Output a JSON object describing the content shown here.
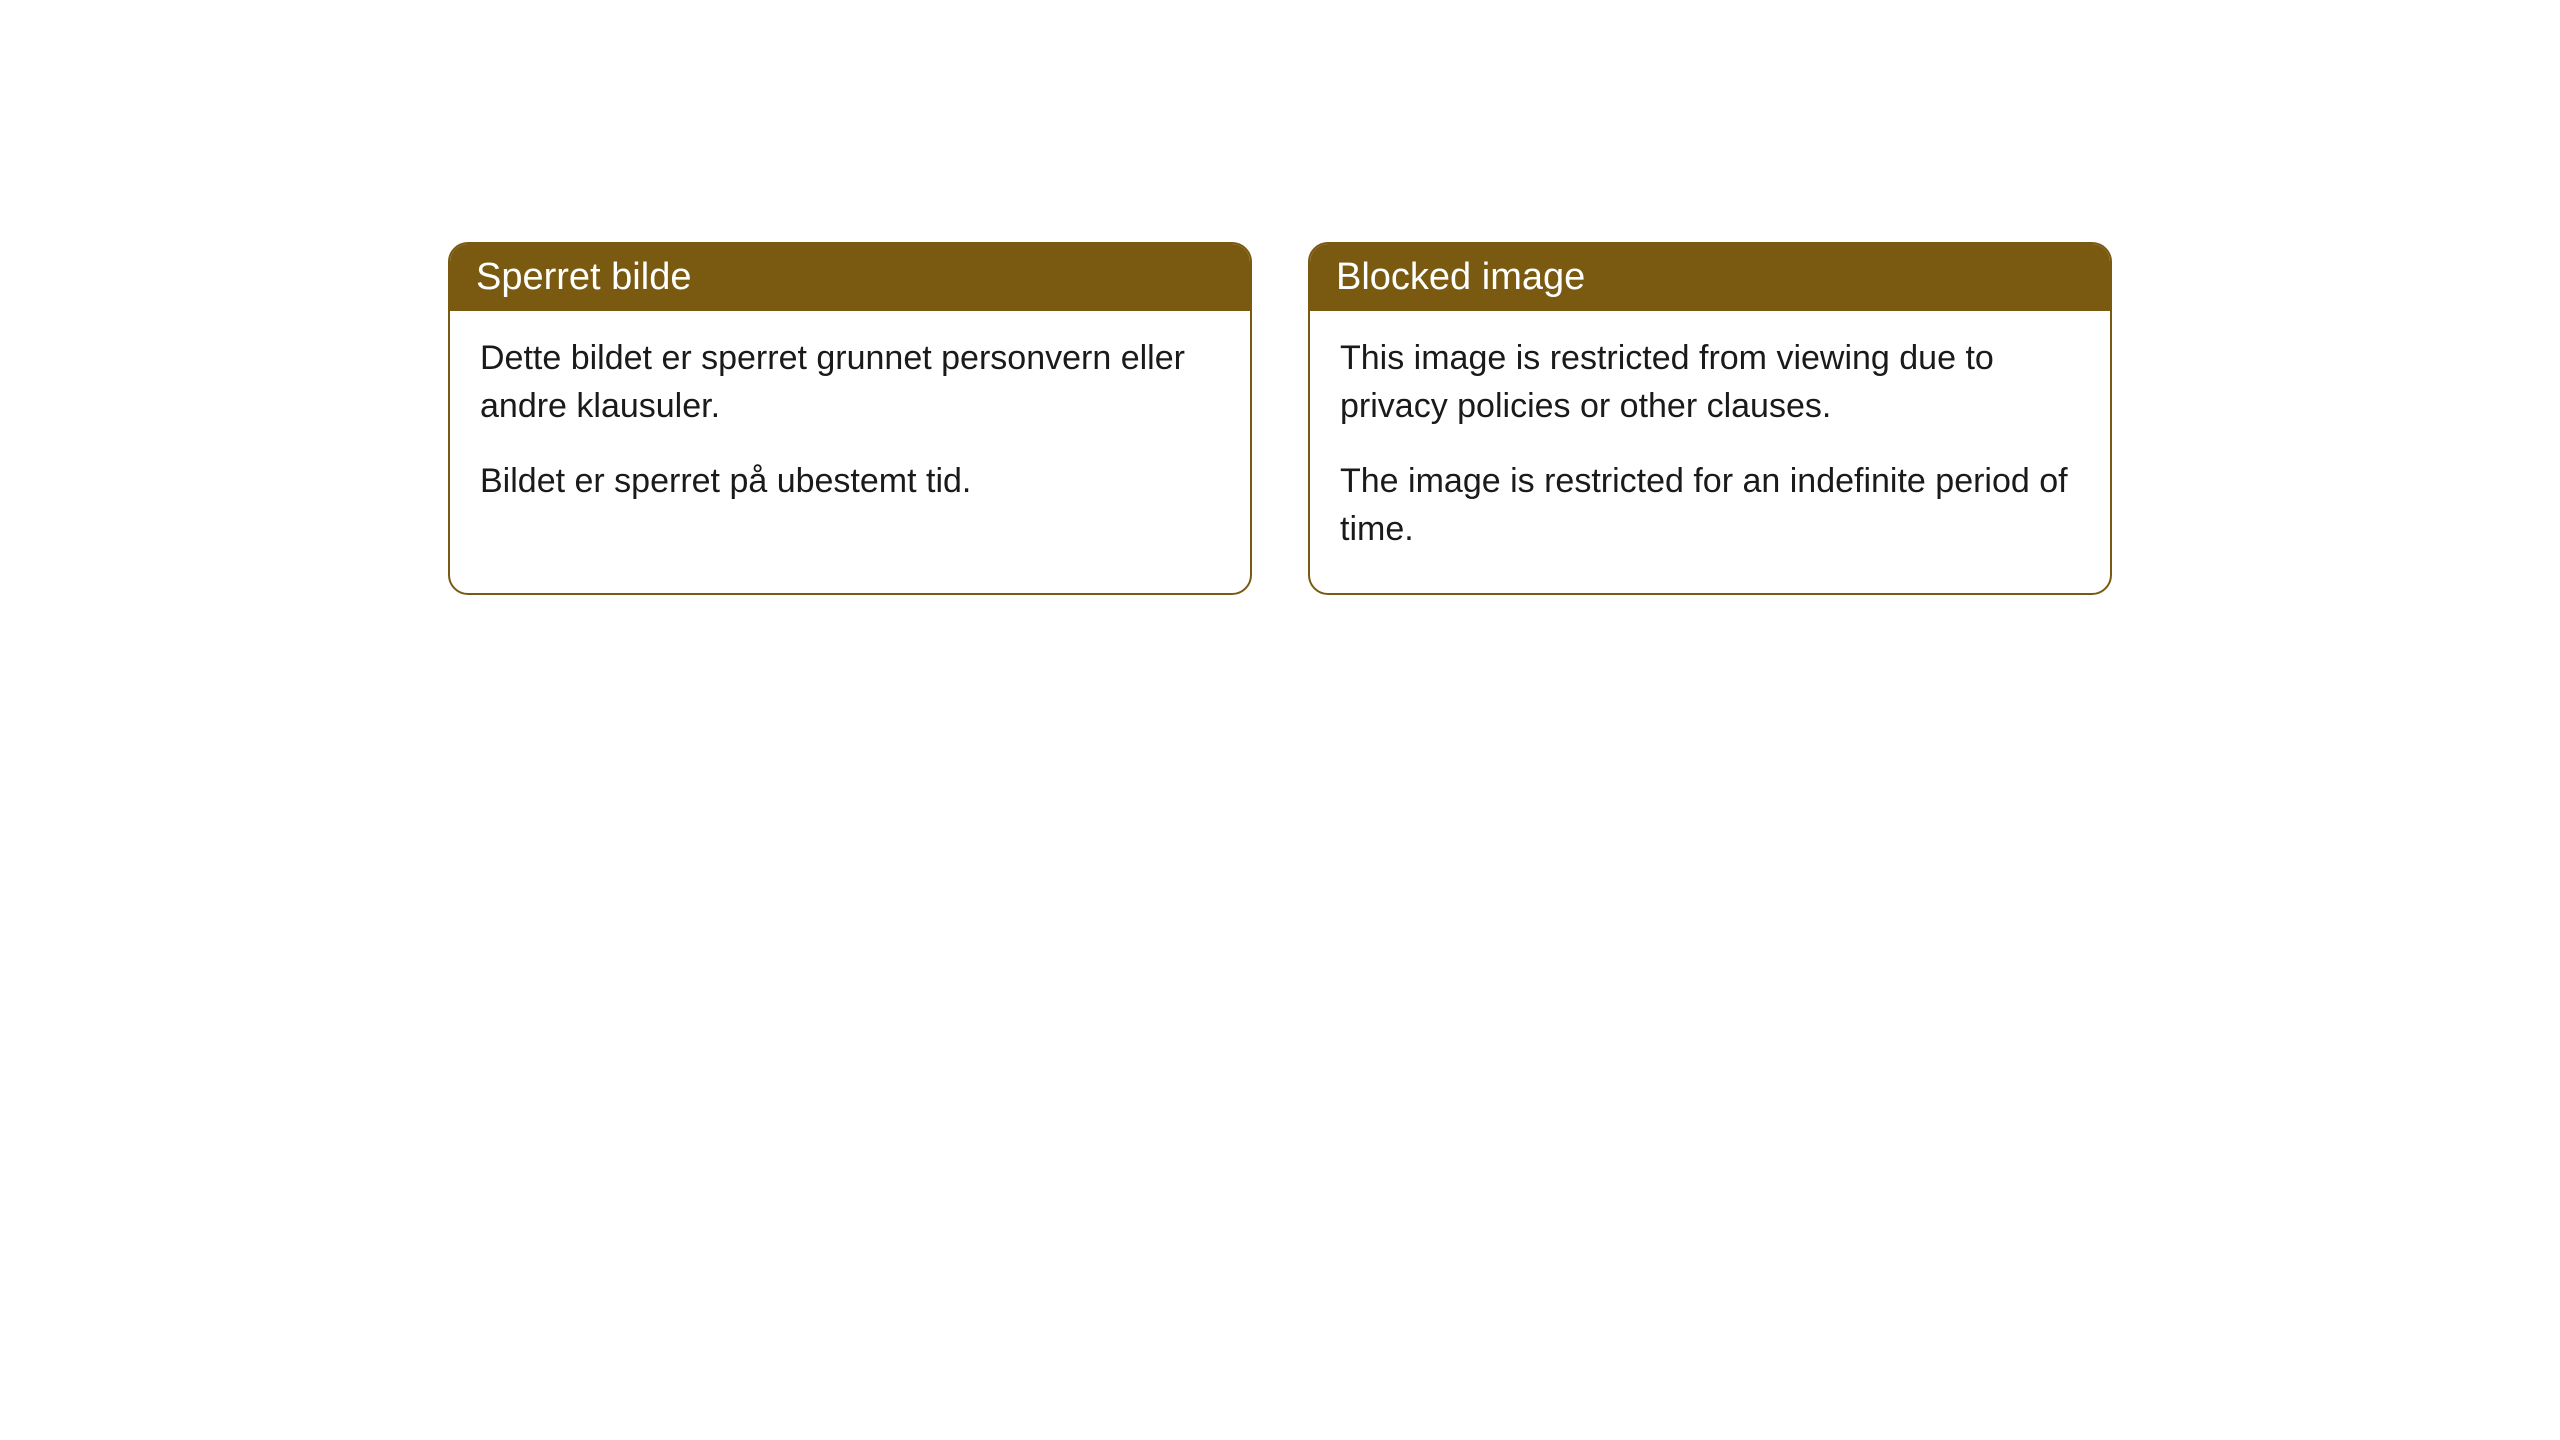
{
  "cards": [
    {
      "title": "Sperret bilde",
      "paragraph1": "Dette bildet er sperret grunnet personvern eller andre klausuler.",
      "paragraph2": "Bildet er sperret på ubestemt tid."
    },
    {
      "title": "Blocked image",
      "paragraph1": "This image is restricted from viewing due to privacy policies or other clauses.",
      "paragraph2": "The image is restricted for an indefinite period of time."
    }
  ],
  "styling": {
    "header_background": "#7a5a10",
    "header_text_color": "#ffffff",
    "border_color": "#7a5a10",
    "body_text_color": "#1a1a1a",
    "card_background": "#ffffff",
    "border_radius": 20,
    "title_fontsize": 38,
    "body_fontsize": 34
  }
}
